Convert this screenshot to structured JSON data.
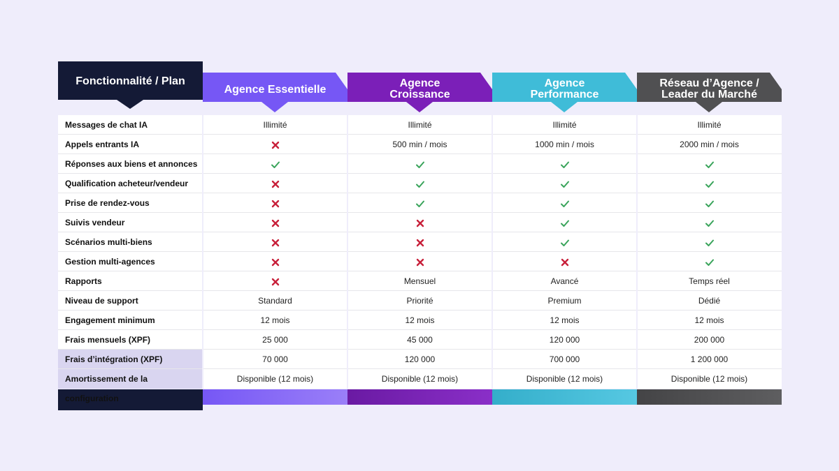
{
  "colors": {
    "feature_header": "#141a36",
    "essentielle": "#7657f5",
    "croissance": "#7b1fb8",
    "performance": "#3fbcd8",
    "reseau": "#505052",
    "check": "#3aa45b",
    "cross": "#c8203a"
  },
  "header": {
    "feature_title": "Fonctionnalité / Plan",
    "plans": [
      {
        "line1": "Agence Essentielle",
        "line2": ""
      },
      {
        "line1": "Agence",
        "line2": "Croissance"
      },
      {
        "line1": "Agence",
        "line2": "Performance"
      },
      {
        "line1": "Réseau d’Agence /",
        "line2": "Leader du Marché"
      }
    ]
  },
  "rows": [
    {
      "feature": "Messages de chat IA",
      "values": [
        "Illimité",
        "Illimité",
        "Illimité",
        "Illimité"
      ]
    },
    {
      "feature": "Appels entrants IA",
      "values": [
        "cross-icon",
        "500 min / mois",
        "1000 min / mois",
        "2000 min / mois"
      ]
    },
    {
      "feature": "Réponses aux biens et annonces",
      "values": [
        "check-icon",
        "check-icon",
        "check-icon",
        "check-icon"
      ]
    },
    {
      "feature": "Qualification acheteur/vendeur",
      "values": [
        "cross-icon",
        "check-icon",
        "check-icon",
        "check-icon"
      ]
    },
    {
      "feature": "Prise de rendez-vous",
      "values": [
        "cross-icon",
        "check-icon",
        "check-icon",
        "check-icon"
      ]
    },
    {
      "feature": "Suivis vendeur",
      "values": [
        "cross-icon",
        "cross-icon",
        "check-icon",
        "check-icon"
      ]
    },
    {
      "feature": "Scénarios multi-biens",
      "values": [
        "cross-icon",
        "cross-icon",
        "check-icon",
        "check-icon"
      ]
    },
    {
      "feature": "Gestion multi-agences",
      "values": [
        "cross-icon",
        "cross-icon",
        "cross-icon",
        "check-icon"
      ]
    },
    {
      "feature": "Rapports",
      "values": [
        "cross-icon",
        "Mensuel",
        "Avancé",
        "Temps réel"
      ]
    },
    {
      "feature": "Niveau de support",
      "values": [
        "Standard",
        "Priorité",
        "Premium",
        "Dédié"
      ]
    },
    {
      "feature": "Engagement minimum",
      "values": [
        "12 mois",
        "12 mois",
        "12 mois",
        "12 mois"
      ]
    },
    {
      "feature": "Frais mensuels (XPF)",
      "values": [
        "25 000",
        "45 000",
        "120 000",
        "200 000"
      ]
    },
    {
      "feature": "Frais d’intégration (XPF)",
      "values": [
        "70 000",
        "120 000",
        "700 000",
        "1 200 000"
      ],
      "highlight": true
    },
    {
      "feature": "Amortissement de la configuration",
      "values": [
        "Disponible (12 mois)",
        "Disponible (12 mois)",
        "Disponible (12 mois)",
        "Disponible (12 mois)"
      ],
      "highlight": true
    }
  ]
}
